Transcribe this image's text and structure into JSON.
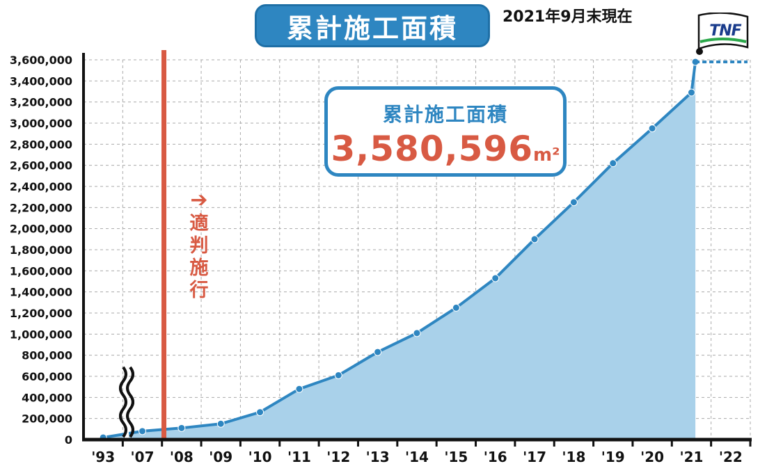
{
  "title": "累計施工面積",
  "as_of": "2021年9月末現在",
  "callout": {
    "label": "累計施工面積",
    "value": "3,580,596",
    "unit": "m²"
  },
  "enforcement_marker": {
    "arrow": "➔",
    "label": [
      "適",
      "判",
      "施",
      "行"
    ],
    "year": "'08"
  },
  "logo_text": "TNF",
  "colors": {
    "line": "#2e86c1",
    "fill": "#a9d1ea",
    "accent": "#d85a43",
    "axis": "#111111",
    "grid": "#aaaaaa"
  },
  "chart_data": {
    "type": "area",
    "categories": [
      "'93",
      "'07",
      "'08",
      "'09",
      "'10",
      "'11",
      "'12",
      "'13",
      "'14",
      "'15",
      "'16",
      "'17",
      "'18",
      "'19",
      "'20",
      "'21",
      "'22"
    ],
    "series": [
      {
        "values": [
          20000,
          80000,
          110000,
          150000,
          260000,
          480000,
          610000,
          830000,
          1010000,
          1250000,
          1530000,
          1900000,
          2250000,
          2620000,
          2950000,
          3290000,
          3580596
        ]
      }
    ],
    "y_ticks": [
      0,
      200000,
      400000,
      600000,
      800000,
      1000000,
      1200000,
      1400000,
      1600000,
      1800000,
      2000000,
      2200000,
      2400000,
      2600000,
      2800000,
      3000000,
      3200000,
      3400000,
      3600000
    ],
    "y_tick_labels": [
      "0",
      "200,000",
      "400,000",
      "600,000",
      "800,000",
      "1,000,000",
      "1,200,000",
      "1,400,000",
      "1,600,000",
      "1,800,000",
      "2,000,000",
      "2,200,000",
      "2,400,000",
      "2,600,000",
      "2,800,000",
      "3,000,000",
      "3,200,000",
      "3,400,000",
      "3,600,000"
    ],
    "ylim": [
      0,
      3600000
    ],
    "grid": true,
    "axis_break": "'93–'07",
    "legend": "none"
  }
}
